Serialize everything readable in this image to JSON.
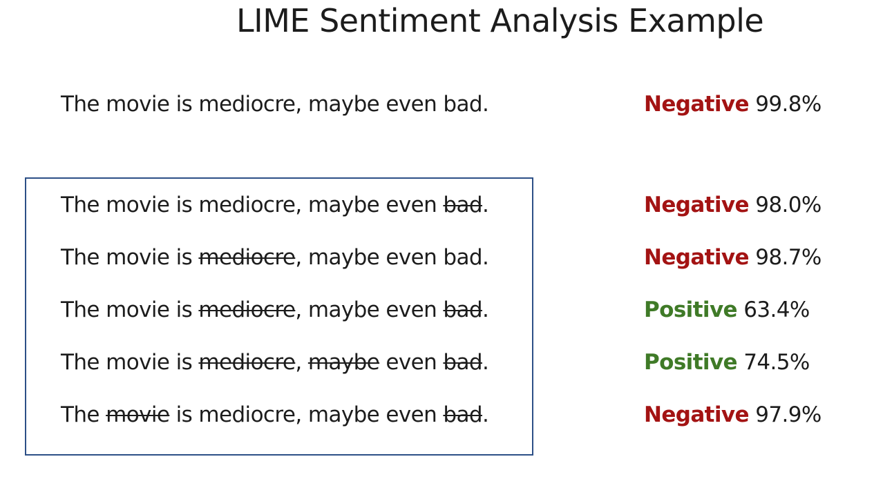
{
  "title": "LIME Sentiment Analysis Example",
  "colors": {
    "negative": "#a31313",
    "positive": "#3f7a27",
    "box_border": "#2c4f86"
  },
  "original": {
    "tokens": [
      {
        "text": "The",
        "removed": false
      },
      {
        "text": " ",
        "removed": false
      },
      {
        "text": "movie",
        "removed": false
      },
      {
        "text": " is ",
        "removed": false
      },
      {
        "text": "mediocre",
        "removed": false
      },
      {
        "text": ", ",
        "removed": false
      },
      {
        "text": "maybe",
        "removed": false
      },
      {
        "text": " even ",
        "removed": false
      },
      {
        "text": "bad",
        "removed": false
      },
      {
        "text": ".",
        "removed": false
      }
    ],
    "label": "Negative",
    "sentiment": "negative",
    "percent": "99.8%"
  },
  "perturbations": [
    {
      "tokens": [
        {
          "text": "The",
          "removed": false
        },
        {
          "text": " ",
          "removed": false
        },
        {
          "text": "movie",
          "removed": false
        },
        {
          "text": " is ",
          "removed": false
        },
        {
          "text": "mediocre",
          "removed": false
        },
        {
          "text": ", ",
          "removed": false
        },
        {
          "text": "maybe",
          "removed": false
        },
        {
          "text": " even ",
          "removed": false
        },
        {
          "text": "bad",
          "removed": true
        },
        {
          "text": ".",
          "removed": false
        }
      ],
      "label": "Negative",
      "sentiment": "negative",
      "percent": "98.0%"
    },
    {
      "tokens": [
        {
          "text": "The",
          "removed": false
        },
        {
          "text": " ",
          "removed": false
        },
        {
          "text": "movie",
          "removed": false
        },
        {
          "text": " is ",
          "removed": false
        },
        {
          "text": "mediocre",
          "removed": true
        },
        {
          "text": ", ",
          "removed": false
        },
        {
          "text": "maybe",
          "removed": false
        },
        {
          "text": " even ",
          "removed": false
        },
        {
          "text": "bad",
          "removed": false
        },
        {
          "text": ".",
          "removed": false
        }
      ],
      "label": "Negative",
      "sentiment": "negative",
      "percent": "98.7%"
    },
    {
      "tokens": [
        {
          "text": "The",
          "removed": false
        },
        {
          "text": " ",
          "removed": false
        },
        {
          "text": "movie",
          "removed": false
        },
        {
          "text": " is ",
          "removed": false
        },
        {
          "text": "mediocre",
          "removed": true
        },
        {
          "text": ", ",
          "removed": false
        },
        {
          "text": "maybe",
          "removed": false
        },
        {
          "text": " even ",
          "removed": false
        },
        {
          "text": "bad",
          "removed": true
        },
        {
          "text": ".",
          "removed": false
        }
      ],
      "label": "Positive",
      "sentiment": "positive",
      "percent": "63.4%"
    },
    {
      "tokens": [
        {
          "text": "The",
          "removed": false
        },
        {
          "text": " ",
          "removed": false
        },
        {
          "text": "movie",
          "removed": false
        },
        {
          "text": " is ",
          "removed": false
        },
        {
          "text": "mediocre",
          "removed": true
        },
        {
          "text": ", ",
          "removed": false
        },
        {
          "text": "maybe",
          "removed": true
        },
        {
          "text": " even ",
          "removed": false
        },
        {
          "text": "bad",
          "removed": true
        },
        {
          "text": ".",
          "removed": false
        }
      ],
      "label": "Positive",
      "sentiment": "positive",
      "percent": "74.5%"
    },
    {
      "tokens": [
        {
          "text": "The",
          "removed": false
        },
        {
          "text": " ",
          "removed": false
        },
        {
          "text": "movie",
          "removed": true
        },
        {
          "text": " is ",
          "removed": false
        },
        {
          "text": "mediocre",
          "removed": false
        },
        {
          "text": ", ",
          "removed": false
        },
        {
          "text": "maybe",
          "removed": false
        },
        {
          "text": " even ",
          "removed": false
        },
        {
          "text": "bad",
          "removed": true
        },
        {
          "text": ".",
          "removed": false
        }
      ],
      "label": "Negative",
      "sentiment": "negative",
      "percent": "97.9%"
    }
  ]
}
